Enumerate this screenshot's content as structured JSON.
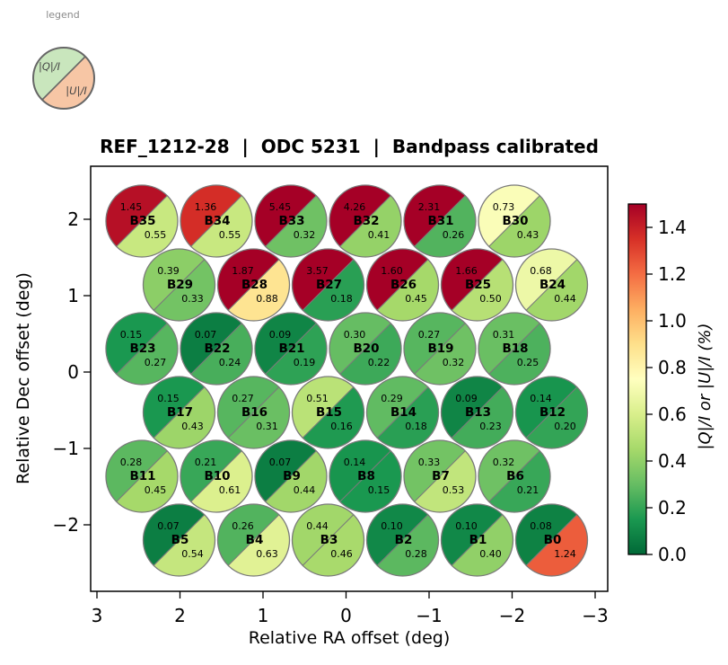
{
  "header": {
    "title": "REF_1212-28  |  ODC 5231  |  Bandpass calibrated"
  },
  "legend": {
    "title": "legend",
    "q_label": "|Q|/I",
    "u_label": "|U|/I",
    "q_color": "#c9e6bd",
    "u_color": "#f7c6a5",
    "outline_color": "#666666"
  },
  "axes": {
    "x_tick_labels": [
      "3",
      "2",
      "1",
      "0",
      "−1",
      "−2",
      "−3"
    ],
    "y_tick_labels": [
      "2",
      "1",
      "0",
      "−1",
      "−2"
    ]
  },
  "colorbar": {
    "label": "|Q|/I or |U|/I (%)",
    "tick_labels": [
      "1.4",
      "1.2",
      "1.0",
      "0.8",
      "0.6",
      "0.4",
      "0.2",
      "0.0"
    ],
    "tick_values": [
      1.4,
      1.2,
      1.0,
      0.8,
      0.6,
      0.4,
      0.2,
      0.0
    ],
    "vmin": 0.0,
    "vmax": 1.5,
    "colormap": "RdYlGn_r",
    "stops_low_to_high": [
      "#006837",
      "#1a9850",
      "#66bd63",
      "#a6d96a",
      "#d9ef8b",
      "#ffffbf",
      "#fee08b",
      "#fdae61",
      "#f46d43",
      "#d73027",
      "#a50026"
    ]
  },
  "chart_data": {
    "type": "scatter",
    "title": "REF_1212-28 | ODC 5231 | Bandpass calibrated",
    "xlabel": "Relative RA offset (deg)",
    "ylabel": "Relative Dec offset (deg)",
    "x_range": [
      3,
      -3
    ],
    "y_range": [
      -2.6,
      2.6
    ],
    "value_unit": "%",
    "color_scale": {
      "min": 0.0,
      "max": 1.5,
      "colormap": "RdYlGn_r"
    },
    "grid": false,
    "beams": [
      {
        "name": "B35",
        "q": "1.45",
        "u": "0.55",
        "row": 0,
        "col": 0,
        "ra": 2.45,
        "dec": 2.0
      },
      {
        "name": "B34",
        "q": "1.36",
        "u": "0.55",
        "row": 0,
        "col": 1,
        "ra": 1.55,
        "dec": 2.0
      },
      {
        "name": "B33",
        "q": "5.45",
        "u": "0.32",
        "row": 0,
        "col": 2,
        "ra": 0.65,
        "dec": 2.0
      },
      {
        "name": "B32",
        "q": "4.26",
        "u": "0.41",
        "row": 0,
        "col": 3,
        "ra": -0.25,
        "dec": 2.0
      },
      {
        "name": "B31",
        "q": "2.31",
        "u": "0.26",
        "row": 0,
        "col": 4,
        "ra": -1.15,
        "dec": 2.0
      },
      {
        "name": "B30",
        "q": "0.73",
        "u": "0.43",
        "row": 0,
        "col": 5,
        "ra": -2.05,
        "dec": 2.0
      },
      {
        "name": "B29",
        "q": "0.39",
        "u": "0.33",
        "row": 1,
        "col": 0,
        "ra": 2.0,
        "dec": 1.15
      },
      {
        "name": "B28",
        "q": "1.87",
        "u": "0.88",
        "row": 1,
        "col": 1,
        "ra": 1.1,
        "dec": 1.15
      },
      {
        "name": "B27",
        "q": "3.57",
        "u": "0.18",
        "row": 1,
        "col": 2,
        "ra": 0.2,
        "dec": 1.15
      },
      {
        "name": "B26",
        "q": "1.60",
        "u": "0.45",
        "row": 1,
        "col": 3,
        "ra": -0.7,
        "dec": 1.15
      },
      {
        "name": "B25",
        "q": "1.66",
        "u": "0.50",
        "row": 1,
        "col": 4,
        "ra": -1.6,
        "dec": 1.15
      },
      {
        "name": "B24",
        "q": "0.68",
        "u": "0.44",
        "row": 1,
        "col": 5,
        "ra": -2.5,
        "dec": 1.15
      },
      {
        "name": "B23",
        "q": "0.15",
        "u": "0.27",
        "row": 2,
        "col": 0,
        "ra": 2.45,
        "dec": 0.3
      },
      {
        "name": "B22",
        "q": "0.07",
        "u": "0.24",
        "row": 2,
        "col": 1,
        "ra": 1.55,
        "dec": 0.3
      },
      {
        "name": "B21",
        "q": "0.09",
        "u": "0.19",
        "row": 2,
        "col": 2,
        "ra": 0.65,
        "dec": 0.3
      },
      {
        "name": "B20",
        "q": "0.30",
        "u": "0.22",
        "row": 2,
        "col": 3,
        "ra": -0.25,
        "dec": 0.3
      },
      {
        "name": "B19",
        "q": "0.27",
        "u": "0.32",
        "row": 2,
        "col": 4,
        "ra": -1.15,
        "dec": 0.3
      },
      {
        "name": "B18",
        "q": "0.31",
        "u": "0.25",
        "row": 2,
        "col": 5,
        "ra": -2.05,
        "dec": 0.3
      },
      {
        "name": "B17",
        "q": "0.15",
        "u": "0.43",
        "row": 3,
        "col": 0,
        "ra": 2.0,
        "dec": -0.55
      },
      {
        "name": "B16",
        "q": "0.27",
        "u": "0.31",
        "row": 3,
        "col": 1,
        "ra": 1.1,
        "dec": -0.55
      },
      {
        "name": "B15",
        "q": "0.51",
        "u": "0.16",
        "row": 3,
        "col": 2,
        "ra": 0.2,
        "dec": -0.55
      },
      {
        "name": "B14",
        "q": "0.29",
        "u": "0.18",
        "row": 3,
        "col": 3,
        "ra": -0.7,
        "dec": -0.55
      },
      {
        "name": "B13",
        "q": "0.09",
        "u": "0.23",
        "row": 3,
        "col": 4,
        "ra": -1.6,
        "dec": -0.55
      },
      {
        "name": "B12",
        "q": "0.14",
        "u": "0.20",
        "row": 3,
        "col": 5,
        "ra": -2.5,
        "dec": -0.55
      },
      {
        "name": "B11",
        "q": "0.28",
        "u": "0.45",
        "row": 4,
        "col": 0,
        "ra": 2.45,
        "dec": -1.4
      },
      {
        "name": "B10",
        "q": "0.21",
        "u": "0.61",
        "row": 4,
        "col": 1,
        "ra": 1.55,
        "dec": -1.4
      },
      {
        "name": "B9",
        "q": "0.07",
        "u": "0.44",
        "row": 4,
        "col": 2,
        "ra": 0.65,
        "dec": -1.4
      },
      {
        "name": "B8",
        "q": "0.14",
        "u": "0.15",
        "row": 4,
        "col": 3,
        "ra": -0.25,
        "dec": -1.4
      },
      {
        "name": "B7",
        "q": "0.33",
        "u": "0.53",
        "row": 4,
        "col": 4,
        "ra": -1.15,
        "dec": -1.4
      },
      {
        "name": "B6",
        "q": "0.32",
        "u": "0.21",
        "row": 4,
        "col": 5,
        "ra": -2.05,
        "dec": -1.4
      },
      {
        "name": "B5",
        "q": "0.07",
        "u": "0.54",
        "row": 5,
        "col": 0,
        "ra": 2.0,
        "dec": -2.2
      },
      {
        "name": "B4",
        "q": "0.26",
        "u": "0.63",
        "row": 5,
        "col": 1,
        "ra": 1.1,
        "dec": -2.2
      },
      {
        "name": "B3",
        "q": "0.44",
        "u": "0.46",
        "row": 5,
        "col": 2,
        "ra": 0.2,
        "dec": -2.2
      },
      {
        "name": "B2",
        "q": "0.10",
        "u": "0.28",
        "row": 5,
        "col": 3,
        "ra": -0.7,
        "dec": -2.2
      },
      {
        "name": "B1",
        "q": "0.10",
        "u": "0.40",
        "row": 5,
        "col": 4,
        "ra": -1.6,
        "dec": -2.2
      },
      {
        "name": "B0",
        "q": "0.08",
        "u": "1.24",
        "row": 5,
        "col": 5,
        "ra": -2.5,
        "dec": -2.2
      }
    ]
  }
}
